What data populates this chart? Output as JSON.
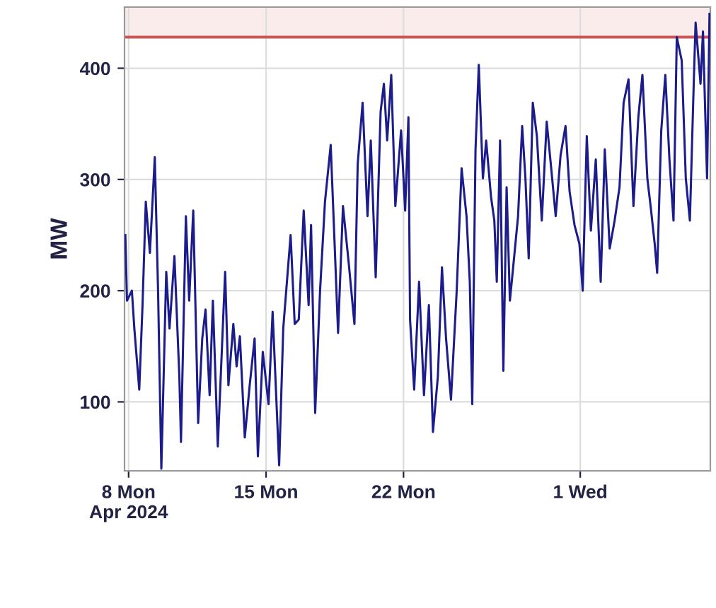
{
  "chart_data": {
    "type": "line",
    "ylabel": "MW",
    "grid": true,
    "marker": "none",
    "line_style": "solid",
    "xlim": [
      "2024-04-07T19:00",
      "2024-05-07T15:00"
    ],
    "xticks": [
      {
        "value": "2024-04-08",
        "label": "8 Mon\nApr 2024"
      },
      {
        "value": "2024-04-15",
        "label": "15 Mon"
      },
      {
        "value": "2024-04-22",
        "label": "22 Mon"
      },
      {
        "value": "2024-05-01",
        "label": "1 Wed"
      }
    ],
    "ylim": [
      38,
      455
    ],
    "yticks": [
      100,
      200,
      300,
      400
    ],
    "ref_lines": [
      {
        "axis": "y",
        "value": 428,
        "color": "#cc5555"
      }
    ],
    "bands": [
      {
        "axis": "y",
        "from": 428,
        "to": 455,
        "color": "#fbecec"
      }
    ],
    "x": [
      "2024-04-07T20:00",
      "2024-04-07T22:00",
      "2024-04-08T04:00",
      "2024-04-08T07:00",
      "2024-04-08T13:00",
      "2024-04-08T17:00",
      "2024-04-08T21:00",
      "2024-04-09T02:00",
      "2024-04-09T08:00",
      "2024-04-09T12:00",
      "2024-04-09T16:00",
      "2024-04-09T22:00",
      "2024-04-10T02:00",
      "2024-04-10T08:00",
      "2024-04-10T14:00",
      "2024-04-10T16:00",
      "2024-04-10T22:00",
      "2024-04-11T02:00",
      "2024-04-11T07:00",
      "2024-04-11T13:00",
      "2024-04-11T18:00",
      "2024-04-11T22:00",
      "2024-04-12T03:00",
      "2024-04-12T07:00",
      "2024-04-12T13:00",
      "2024-04-12T22:00",
      "2024-04-13T02:00",
      "2024-04-13T08:00",
      "2024-04-13T12:00",
      "2024-04-13T16:00",
      "2024-04-13T22:00",
      "2024-04-14T04:00",
      "2024-04-14T10:00",
      "2024-04-14T14:00",
      "2024-04-14T20:00",
      "2024-04-15T03:00",
      "2024-04-15T08:00",
      "2024-04-15T16:00",
      "2024-04-15T21:00",
      "2024-04-16T06:00",
      "2024-04-16T11:00",
      "2024-04-16T16:00",
      "2024-04-16T22:00",
      "2024-04-17T04:00",
      "2024-04-17T07:00",
      "2024-04-17T12:00",
      "2024-04-17T18:00",
      "2024-04-18T00:00",
      "2024-04-18T07:00",
      "2024-04-18T12:00",
      "2024-04-18T16:00",
      "2024-04-18T22:00",
      "2024-04-19T05:00",
      "2024-04-19T12:00",
      "2024-04-19T16:00",
      "2024-04-19T22:00",
      "2024-04-20T04:00",
      "2024-04-20T08:00",
      "2024-04-20T14:00",
      "2024-04-20T20:00",
      "2024-04-21T00:00",
      "2024-04-21T04:00",
      "2024-04-21T09:00",
      "2024-04-21T14:00",
      "2024-04-21T21:00",
      "2024-04-22T02:00",
      "2024-04-22T06:00",
      "2024-04-22T08:00",
      "2024-04-22T13:00",
      "2024-04-22T19:00",
      "2024-04-23T01:00",
      "2024-04-23T07:00",
      "2024-04-23T12:00",
      "2024-04-23T18:00",
      "2024-04-23T23:00",
      "2024-04-24T04:00",
      "2024-04-24T10:00",
      "2024-04-24T17:00",
      "2024-04-24T23:00",
      "2024-04-25T05:00",
      "2024-04-25T09:00",
      "2024-04-25T12:00",
      "2024-04-25T16:00",
      "2024-04-25T20:00",
      "2024-04-26T01:00",
      "2024-04-26T05:00",
      "2024-04-26T11:00",
      "2024-04-26T15:00",
      "2024-04-26T18:00",
      "2024-04-26T22:00",
      "2024-04-27T02:00",
      "2024-04-27T06:00",
      "2024-04-27T10:00",
      "2024-04-27T14:00",
      "2024-04-27T20:00",
      "2024-04-28T01:00",
      "2024-04-28T05:00",
      "2024-04-28T09:00",
      "2024-04-28T14:00",
      "2024-04-28T19:00",
      "2024-04-29T01:00",
      "2024-04-29T07:00",
      "2024-04-29T12:00",
      "2024-04-29T18:00",
      "2024-04-30T00:00",
      "2024-04-30T06:00",
      "2024-04-30T11:00",
      "2024-04-30T17:00",
      "2024-04-30T23:00",
      "2024-05-01T03:00",
      "2024-05-01T08:00",
      "2024-05-01T13:00",
      "2024-05-01T19:00",
      "2024-05-02T01:00",
      "2024-05-02T06:00",
      "2024-05-02T12:00",
      "2024-05-02T18:00",
      "2024-05-03T00:00",
      "2024-05-03T05:00",
      "2024-05-03T11:00",
      "2024-05-03T17:00",
      "2024-05-03T23:00",
      "2024-05-04T04:00",
      "2024-05-04T10:00",
      "2024-05-04T14:00",
      "2024-05-04T19:00",
      "2024-05-04T22:00",
      "2024-05-05T03:00",
      "2024-05-05T08:00",
      "2024-05-05T13:00",
      "2024-05-05T18:00",
      "2024-05-05T22:00",
      "2024-05-06T04:00",
      "2024-05-06T09:00",
      "2024-05-06T14:00",
      "2024-05-06T19:00",
      "2024-05-06T21:00",
      "2024-05-07T03:00",
      "2024-05-07T06:00",
      "2024-05-07T11:00",
      "2024-05-07T14:00"
    ],
    "series": [
      {
        "color": "#1c1c8a",
        "values": [
          250,
          191,
          200,
          166,
          111,
          187,
          280,
          234,
          320,
          200,
          40,
          217,
          166,
          231,
          123,
          64,
          267,
          191,
          272,
          81,
          157,
          183,
          106,
          191,
          60,
          217,
          115,
          170,
          132,
          159,
          68,
          115,
          157,
          51,
          145,
          98,
          181,
          43,
          166,
          250,
          170,
          174,
          272,
          187,
          259,
          90,
          200,
          280,
          331,
          238,
          162,
          276,
          225,
          170,
          314,
          369,
          267,
          335,
          212,
          361,
          386,
          335,
          394,
          276,
          344,
          272,
          356,
          174,
          111,
          208,
          106,
          187,
          73,
          123,
          221,
          157,
          102,
          200,
          310,
          267,
          208,
          98,
          327,
          403,
          301,
          335,
          284,
          263,
          208,
          335,
          128,
          293,
          191,
          221,
          267,
          348,
          301,
          229,
          369,
          339,
          263,
          352,
          314,
          267,
          322,
          348,
          289,
          259,
          242,
          200,
          339,
          254,
          318,
          208,
          327,
          238,
          263,
          293,
          369,
          390,
          276,
          356,
          394,
          301,
          276,
          242,
          216,
          344,
          394,
          318,
          263,
          428,
          407,
          301,
          263,
          394,
          441,
          386,
          433,
          301,
          449
        ]
      }
    ]
  }
}
